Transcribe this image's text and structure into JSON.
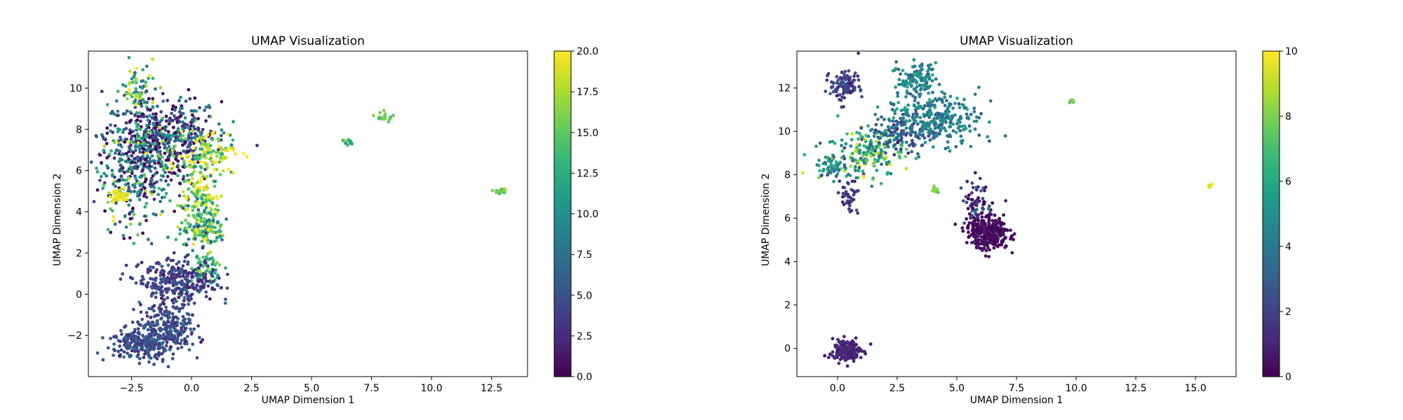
{
  "figure": {
    "panels_label": "Two UMAP scatter plots with viridis colorbars"
  },
  "colormap": {
    "name": "viridis",
    "stops": [
      "#440154",
      "#482878",
      "#3e4989",
      "#31688e",
      "#26828e",
      "#1f9e89",
      "#35b779",
      "#6ece58",
      "#b5de2b",
      "#fde725"
    ]
  },
  "chart_data": [
    {
      "type": "scatter",
      "title": "UMAP Visualization",
      "xlabel": "UMAP Dimension 1",
      "ylabel": "UMAP Dimension 2",
      "xlim": [
        -4.3,
        14.0
      ],
      "ylim": [
        -4.0,
        11.8
      ],
      "xticks": [
        -2.5,
        0.0,
        2.5,
        5.0,
        7.5,
        10.0,
        12.5
      ],
      "xtick_labels": [
        "−2.5",
        "0.0",
        "2.5",
        "5.0",
        "7.5",
        "10.0",
        "12.5"
      ],
      "yticks": [
        -2,
        0,
        2,
        4,
        6,
        8,
        10
      ],
      "ytick_labels": [
        "−2",
        "0",
        "2",
        "4",
        "6",
        "8",
        "10"
      ],
      "colorbar": {
        "range": [
          0,
          20
        ],
        "ticks": [
          0,
          2.5,
          5,
          7.5,
          10,
          12.5,
          15,
          17.5,
          20
        ],
        "tick_labels": [
          "0.0",
          "2.5",
          "5.0",
          "7.5",
          "10.0",
          "12.5",
          "15.0",
          "17.5",
          "20.0"
        ]
      },
      "grid": false,
      "legend": "none",
      "clusters": [
        {
          "cx": -1.2,
          "cy": 7.6,
          "sx": 1.2,
          "sy": 1.0,
          "n": 520,
          "c": 4.5,
          "cs": 4.5
        },
        {
          "cx": -2.4,
          "cy": 5.8,
          "sx": 0.7,
          "sy": 1.4,
          "n": 300,
          "c": 7.5,
          "cs": 5.5
        },
        {
          "cx": -2.2,
          "cy": 9.8,
          "sx": 0.35,
          "sy": 0.7,
          "n": 70,
          "c": 12.5,
          "cs": 5.0
        },
        {
          "cx": 0.6,
          "cy": 6.8,
          "sx": 0.6,
          "sy": 0.5,
          "n": 120,
          "c": 17.5,
          "cs": 3.5
        },
        {
          "cx": 0.4,
          "cy": 4.8,
          "sx": 0.4,
          "sy": 0.5,
          "n": 110,
          "c": 16.0,
          "cs": 3.5
        },
        {
          "cx": -3.0,
          "cy": 4.8,
          "sx": 0.25,
          "sy": 0.2,
          "n": 45,
          "c": 19.5,
          "cs": 1.0
        },
        {
          "cx": 0.5,
          "cy": 3.2,
          "sx": 0.45,
          "sy": 0.5,
          "n": 150,
          "c": 13.5,
          "cs": 4.5
        },
        {
          "cx": 0.6,
          "cy": 1.3,
          "sx": 0.3,
          "sy": 0.4,
          "n": 50,
          "c": 14.0,
          "cs": 2.0
        },
        {
          "cx": -0.5,
          "cy": 0.6,
          "sx": 0.8,
          "sy": 0.5,
          "n": 300,
          "c": 4.0,
          "cs": 1.5
        },
        {
          "cx": -1.0,
          "cy": -1.5,
          "sx": 0.6,
          "sy": 0.6,
          "n": 200,
          "c": 4.6,
          "cs": 1.2
        },
        {
          "cx": -2.0,
          "cy": -2.4,
          "sx": 0.7,
          "sy": 0.4,
          "n": 260,
          "c": 4.8,
          "cs": 1.2
        },
        {
          "cx": 6.5,
          "cy": 7.4,
          "sx": 0.12,
          "sy": 0.08,
          "n": 14,
          "c": 11.5,
          "cs": 2.5
        },
        {
          "cx": 8.0,
          "cy": 8.6,
          "sx": 0.18,
          "sy": 0.15,
          "n": 18,
          "c": 15.0,
          "cs": 1.0
        },
        {
          "cx": 12.9,
          "cy": 5.0,
          "sx": 0.12,
          "sy": 0.08,
          "n": 22,
          "c": 15.5,
          "cs": 0.8
        }
      ]
    },
    {
      "type": "scatter",
      "title": "UMAP Visualization",
      "xlabel": "UMAP Dimension 1",
      "ylabel": "UMAP Dimension 2",
      "xlim": [
        -1.7,
        16.7
      ],
      "ylim": [
        -1.3,
        13.7
      ],
      "xticks": [
        0.0,
        2.5,
        5.0,
        7.5,
        10.0,
        12.5,
        15.0
      ],
      "xtick_labels": [
        "0.0",
        "2.5",
        "5.0",
        "7.5",
        "10.0",
        "12.5",
        "15.0"
      ],
      "yticks": [
        0,
        2,
        4,
        6,
        8,
        10,
        12
      ],
      "ytick_labels": [
        "0",
        "2",
        "4",
        "6",
        "8",
        "10",
        "12"
      ],
      "colorbar": {
        "range": [
          0,
          10
        ],
        "ticks": [
          0,
          2,
          4,
          6,
          8,
          10
        ],
        "tick_labels": [
          "0",
          "2",
          "4",
          "6",
          "8",
          "10"
        ]
      },
      "grid": false,
      "legend": "none",
      "clusters": [
        {
          "cx": 0.3,
          "cy": 12.1,
          "sx": 0.3,
          "sy": 0.35,
          "n": 110,
          "c": 2.0,
          "cs": 0.6
        },
        {
          "cx": 3.3,
          "cy": 12.4,
          "sx": 0.4,
          "sy": 0.35,
          "n": 120,
          "c": 4.5,
          "cs": 0.8
        },
        {
          "cx": 4.0,
          "cy": 10.6,
          "sx": 1.0,
          "sy": 0.6,
          "n": 320,
          "c": 4.2,
          "cs": 1.0
        },
        {
          "cx": 1.2,
          "cy": 9.0,
          "sx": 0.8,
          "sy": 0.6,
          "n": 200,
          "c": 6.5,
          "cs": 2.0
        },
        {
          "cx": -0.2,
          "cy": 8.4,
          "sx": 0.35,
          "sy": 0.25,
          "n": 60,
          "c": 5.0,
          "cs": 1.5
        },
        {
          "cx": 0.5,
          "cy": 7.0,
          "sx": 0.2,
          "sy": 0.45,
          "n": 40,
          "c": 1.5,
          "cs": 0.6
        },
        {
          "cx": 2.5,
          "cy": 9.8,
          "sx": 0.5,
          "sy": 0.4,
          "n": 80,
          "c": 3.0,
          "cs": 1.0
        },
        {
          "cx": 5.8,
          "cy": 6.6,
          "sx": 0.35,
          "sy": 0.6,
          "n": 80,
          "c": 1.2,
          "cs": 1.0
        },
        {
          "cx": 6.3,
          "cy": 5.3,
          "sx": 0.45,
          "sy": 0.35,
          "n": 300,
          "c": 0.3,
          "cs": 0.3
        },
        {
          "cx": 0.4,
          "cy": -0.1,
          "sx": 0.3,
          "sy": 0.25,
          "n": 200,
          "c": 1.0,
          "cs": 0.3
        },
        {
          "cx": 4.1,
          "cy": 7.3,
          "sx": 0.08,
          "sy": 0.08,
          "n": 12,
          "c": 8.0,
          "cs": 0.5
        },
        {
          "cx": 9.8,
          "cy": 11.4,
          "sx": 0.07,
          "sy": 0.05,
          "n": 8,
          "c": 7.8,
          "cs": 0.3
        },
        {
          "cx": 15.6,
          "cy": 7.5,
          "sx": 0.07,
          "sy": 0.05,
          "n": 8,
          "c": 9.6,
          "cs": 0.2
        }
      ]
    }
  ]
}
